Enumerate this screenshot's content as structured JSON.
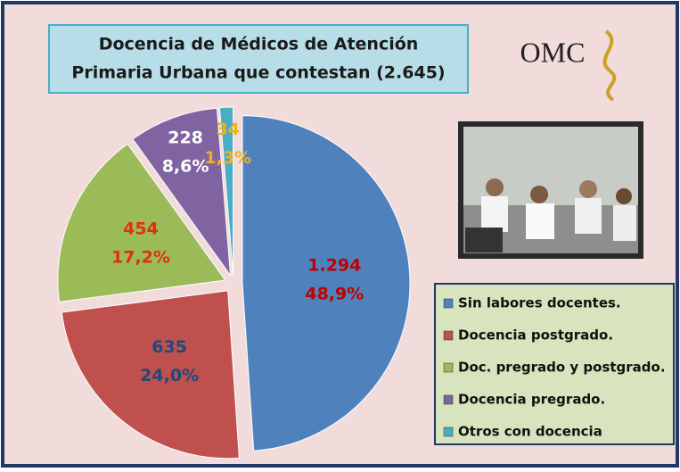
{
  "chart_data": {
    "type": "pie",
    "title": [
      "Docencia de Médicos de Atención",
      "Primaria Urbana que contestan  (2.645)"
    ],
    "logo": "OMC",
    "categories": [
      "Sin labores docentes.",
      "Docencia postgrado.",
      "Doc. pregrado y postgrado.",
      "Docencia pregrado.",
      "Otros con docencia"
    ],
    "values": [
      1294,
      635,
      454,
      228,
      34
    ],
    "value_labels": [
      "1.294",
      "635",
      "454",
      "228",
      "34"
    ],
    "percentages": [
      48.9,
      24.0,
      17.2,
      8.6,
      1.3
    ],
    "percentage_labels": [
      "48,9%",
      "24,0%",
      "17,2%",
      "8,6%",
      "1,3%"
    ],
    "colors": [
      "#4f81bd",
      "#c0504d",
      "#9bbb59",
      "#8064a2",
      "#4bacc6"
    ],
    "label_colors": [
      "#c00000",
      "#1f497d",
      "#e03010",
      "#ffffff",
      "#f0b020"
    ],
    "legend": "lower right"
  }
}
